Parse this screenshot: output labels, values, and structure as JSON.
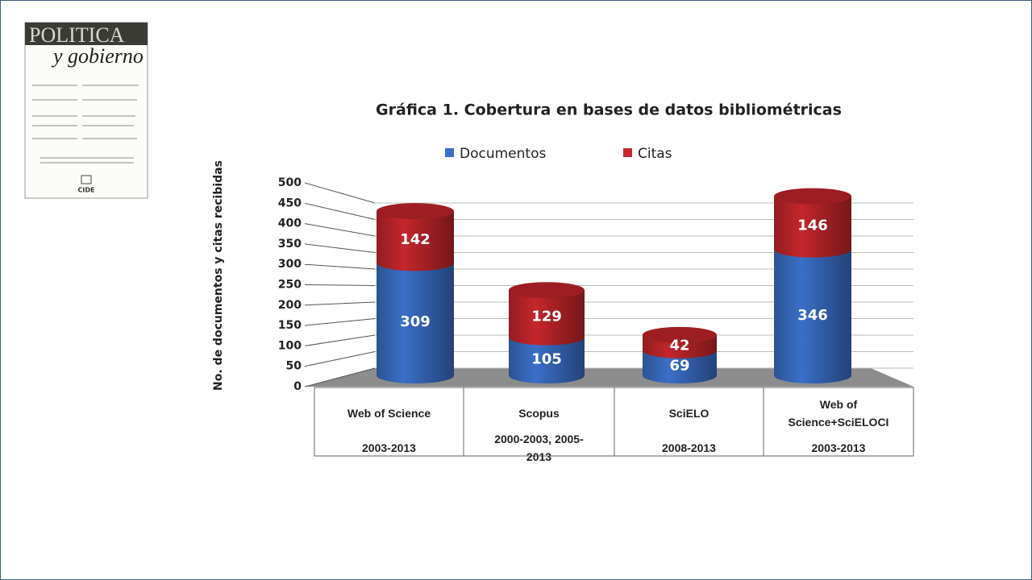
{
  "cover": {
    "title": "POLITICA",
    "subtitle": "y gobierno",
    "publisher": "CIDE"
  },
  "chart_data": {
    "type": "bar",
    "stacked": true,
    "three_d": true,
    "title": "Gráfica 1. Cobertura en bases de datos bibliométricas",
    "y_label": "No. de documentos y citas recibidas",
    "categories": [
      "Web of Science",
      "Scopus",
      "SciELO",
      "Web of Science+SciELOCI"
    ],
    "periods": [
      "2003-2013",
      "2000-2003, 2005-2013",
      "2008-2013",
      "2003-2013"
    ],
    "series": [
      {
        "name": "Documentos",
        "color": "#3a6fc8",
        "values": [
          309,
          105,
          69,
          346
        ]
      },
      {
        "name": "Citas",
        "color": "#c4262b",
        "values": [
          142,
          129,
          42,
          146
        ]
      }
    ],
    "ylim": [
      0,
      500
    ],
    "yticks": [
      0,
      50,
      100,
      150,
      200,
      250,
      300,
      350,
      400,
      450,
      500
    ],
    "grid": true,
    "legend": "top"
  }
}
